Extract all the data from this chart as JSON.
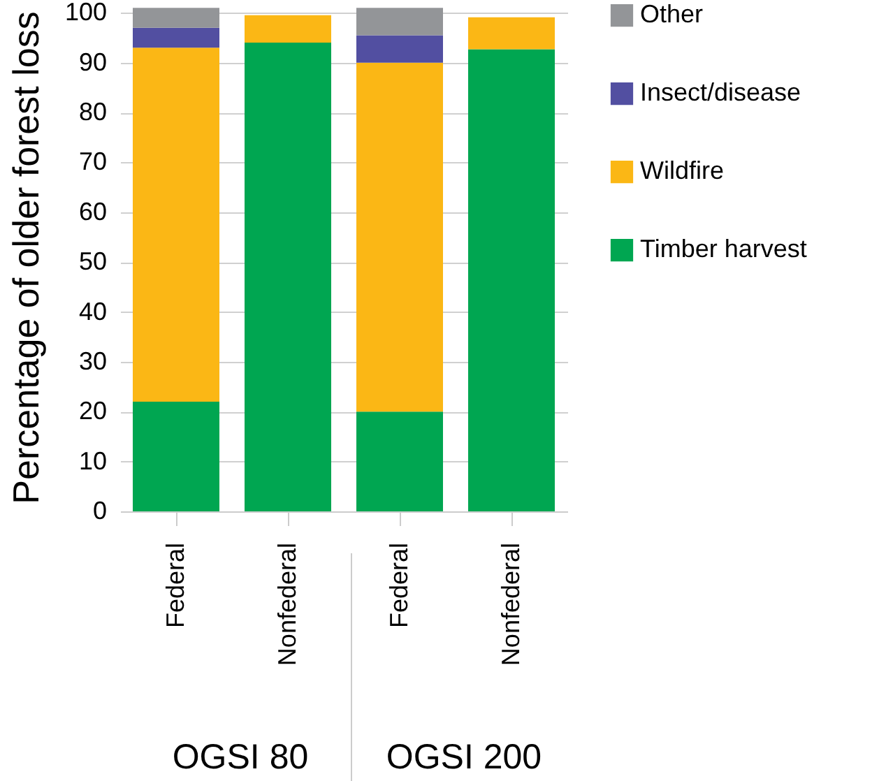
{
  "chart_data": {
    "type": "bar",
    "ylabel": "Percentage of older forest loss",
    "categories": [
      "Federal",
      "Nonfederal",
      "Federal",
      "Nonfederal"
    ],
    "series": [
      {
        "name": "Timber harvest",
        "color": "#00a651",
        "values": [
          22,
          94,
          20,
          92.7
        ]
      },
      {
        "name": "Wildfire",
        "color": "#fbb715",
        "values": [
          71,
          5.5,
          70,
          6.4
        ]
      },
      {
        "name": "Insect/disease",
        "color": "#524fa1",
        "values": [
          4,
          0,
          5.5,
          0
        ]
      },
      {
        "name": "Other",
        "color": "#939598",
        "values": [
          4,
          0,
          5.5,
          0
        ]
      }
    ],
    "stacked": true,
    "ylim": [
      0,
      102
    ],
    "yticks": [
      0,
      10,
      20,
      30,
      40,
      50,
      60,
      70,
      80,
      90,
      100
    ],
    "grid": "y",
    "legend": "right",
    "annotations": [
      "OGSI 80",
      "OGSI 200"
    ]
  }
}
